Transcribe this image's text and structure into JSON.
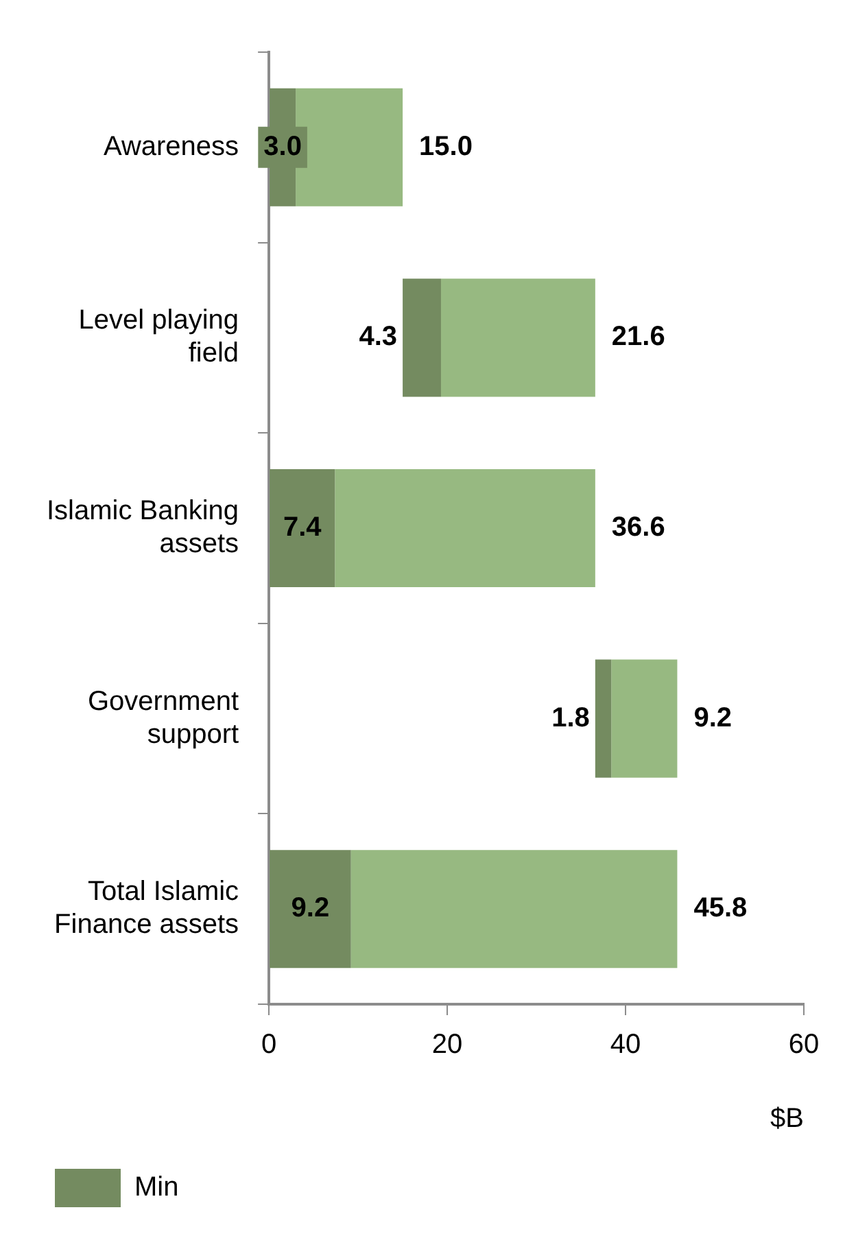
{
  "chart_data": {
    "type": "bar",
    "orientation": "horizontal",
    "categories": [
      "Awareness",
      "Level playing field",
      "Islamic Banking assets",
      "Government support",
      "Total Islamic Finance assets"
    ],
    "series": [
      {
        "name": "Min",
        "color": "#748b60",
        "base": [
          0,
          15.0,
          0,
          36.6,
          0
        ],
        "values": [
          3.0,
          4.3,
          7.4,
          1.8,
          9.2
        ],
        "value_labels": [
          "3.0",
          "4.3",
          "7.4",
          "1.8",
          "9.2"
        ]
      },
      {
        "color": "#97b981",
        "base": [
          3.0,
          19.3,
          7.4,
          38.4,
          9.2
        ],
        "values": [
          12.0,
          17.3,
          29.2,
          7.4,
          36.6
        ]
      }
    ],
    "totals": [
      "15.0",
      "21.6",
      "36.6",
      "9.2",
      "45.8"
    ],
    "xlim": [
      0,
      60
    ],
    "xticks": [
      0,
      20,
      40,
      60
    ],
    "xlabel": "$B",
    "grid": false,
    "legend": "bottom left"
  }
}
